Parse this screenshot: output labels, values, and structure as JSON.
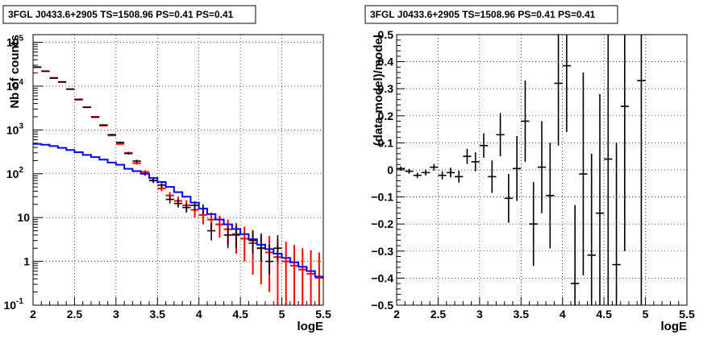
{
  "chart_data": [
    {
      "type": "scatter",
      "title": "3FGL J0433.6+2905 TS=1508.96 PS=0.41 PS=0.41",
      "xlabel": "logE",
      "ylabel": "Nb of counts",
      "xlim": [
        2,
        5.5
      ],
      "ylim": [
        0.1,
        150000
      ],
      "y_scale": "log",
      "grid": true,
      "x_ticks": [
        "2",
        "2.5",
        "3",
        "3.5",
        "4",
        "4.5",
        "5",
        "5.5"
      ],
      "y_ticks": [
        {
          "base": "10",
          "exp": "-1",
          "value": 0.1
        },
        {
          "base": "1",
          "exp": "",
          "value": 1
        },
        {
          "base": "10",
          "exp": "",
          "value": 10
        },
        {
          "base": "10",
          "exp": "2",
          "value": 100
        },
        {
          "base": "10",
          "exp": "3",
          "value": 1000
        },
        {
          "base": "10",
          "exp": "4",
          "value": 10000
        },
        {
          "base": "10",
          "exp": "5",
          "value": 100000
        }
      ],
      "series": [
        {
          "color": "#ff0000",
          "style": "errorbar-step",
          "points": [
            {
              "x": 2.05,
              "y": 27000,
              "lo": 26500,
              "hi": 27500
            },
            {
              "x": 2.15,
              "y": 22000,
              "lo": 21600,
              "hi": 22400
            },
            {
              "x": 2.25,
              "y": 15500,
              "lo": 15200,
              "hi": 15800
            },
            {
              "x": 2.35,
              "y": 12500,
              "lo": 12200,
              "hi": 12800
            },
            {
              "x": 2.45,
              "y": 8500,
              "lo": 8300,
              "hi": 8700
            },
            {
              "x": 2.55,
              "y": 5000,
              "lo": 4900,
              "hi": 5100
            },
            {
              "x": 2.65,
              "y": 3300,
              "lo": 3200,
              "hi": 3400
            },
            {
              "x": 2.75,
              "y": 2000,
              "lo": 1950,
              "hi": 2050
            },
            {
              "x": 2.85,
              "y": 1250,
              "lo": 1200,
              "hi": 1300
            },
            {
              "x": 2.95,
              "y": 750,
              "lo": 720,
              "hi": 780
            },
            {
              "x": 3.05,
              "y": 480,
              "lo": 455,
              "hi": 505
            },
            {
              "x": 3.15,
              "y": 300,
              "lo": 282,
              "hi": 318
            },
            {
              "x": 3.25,
              "y": 175,
              "lo": 162,
              "hi": 188
            },
            {
              "x": 3.35,
              "y": 110,
              "lo": 100,
              "hi": 120
            },
            {
              "x": 3.45,
              "y": 70,
              "lo": 62,
              "hi": 78
            },
            {
              "x": 3.55,
              "y": 46,
              "lo": 40,
              "hi": 53
            },
            {
              "x": 3.65,
              "y": 32,
              "lo": 26,
              "hi": 38
            },
            {
              "x": 3.75,
              "y": 24,
              "lo": 18,
              "hi": 30
            },
            {
              "x": 3.85,
              "y": 19,
              "lo": 14,
              "hi": 25
            },
            {
              "x": 3.95,
              "y": 15,
              "lo": 10,
              "hi": 20
            },
            {
              "x": 4.05,
              "y": 11.5,
              "lo": 7,
              "hi": 16
            },
            {
              "x": 4.15,
              "y": 9,
              "lo": 5,
              "hi": 13
            },
            {
              "x": 4.25,
              "y": 7,
              "lo": 3.5,
              "hi": 11
            },
            {
              "x": 4.35,
              "y": 5.4,
              "lo": 2.4,
              "hi": 9
            },
            {
              "x": 4.45,
              "y": 4.2,
              "lo": 1.5,
              "hi": 7.5
            },
            {
              "x": 4.55,
              "y": 3.3,
              "lo": 1.0,
              "hi": 6.2
            },
            {
              "x": 4.65,
              "y": 2.6,
              "lo": 0.5,
              "hi": 5.2
            },
            {
              "x": 4.75,
              "y": 2.0,
              "lo": 0.3,
              "hi": 4.4
            },
            {
              "x": 4.85,
              "y": 1.6,
              "lo": 0.2,
              "hi": 3.8
            },
            {
              "x": 4.95,
              "y": 1.25,
              "lo": 0.1,
              "hi": 3.2
            },
            {
              "x": 5.05,
              "y": 1.0,
              "lo": 0.1,
              "hi": 2.8
            },
            {
              "x": 5.15,
              "y": 0.8,
              "lo": 0.1,
              "hi": 2.4
            },
            {
              "x": 5.25,
              "y": 0.65,
              "lo": 0.1,
              "hi": 2.0
            },
            {
              "x": 5.35,
              "y": 0.52,
              "lo": 0.1,
              "hi": 1.8
            },
            {
              "x": 5.45,
              "y": 0.42,
              "lo": 0.1,
              "hi": 1.6
            }
          ]
        },
        {
          "color": "#000000",
          "style": "errorbar",
          "points": [
            {
              "x": 2.05,
              "y": 27300,
              "lo": 27000,
              "hi": 27600
            },
            {
              "x": 2.15,
              "y": 21900,
              "lo": 21600,
              "hi": 22200
            },
            {
              "x": 2.25,
              "y": 15200,
              "lo": 15000,
              "hi": 15500
            },
            {
              "x": 2.35,
              "y": 12400,
              "lo": 12100,
              "hi": 12700
            },
            {
              "x": 2.45,
              "y": 8600,
              "lo": 8400,
              "hi": 8800
            },
            {
              "x": 2.55,
              "y": 4900,
              "lo": 4800,
              "hi": 5000
            },
            {
              "x": 2.65,
              "y": 3300,
              "lo": 3200,
              "hi": 3400
            },
            {
              "x": 2.75,
              "y": 1950,
              "lo": 1900,
              "hi": 2000
            },
            {
              "x": 2.85,
              "y": 1300,
              "lo": 1250,
              "hi": 1350
            },
            {
              "x": 2.95,
              "y": 780,
              "lo": 750,
              "hi": 810
            },
            {
              "x": 3.05,
              "y": 520,
              "lo": 495,
              "hi": 545
            },
            {
              "x": 3.15,
              "y": 290,
              "lo": 273,
              "hi": 307
            },
            {
              "x": 3.25,
              "y": 195,
              "lo": 181,
              "hi": 209
            },
            {
              "x": 3.35,
              "y": 100,
              "lo": 90,
              "hi": 110
            },
            {
              "x": 3.45,
              "y": 70,
              "lo": 62,
              "hi": 78
            },
            {
              "x": 3.55,
              "y": 55,
              "lo": 48,
              "hi": 62
            },
            {
              "x": 3.65,
              "y": 26,
              "lo": 21,
              "hi": 31
            },
            {
              "x": 3.75,
              "y": 21,
              "lo": 17,
              "hi": 26
            },
            {
              "x": 3.85,
              "y": 17,
              "lo": 13,
              "hi": 21
            },
            {
              "x": 3.95,
              "y": 19,
              "lo": 14.5,
              "hi": 23.5
            },
            {
              "x": 4.05,
              "y": 16,
              "lo": 12,
              "hi": 20
            },
            {
              "x": 4.15,
              "y": 5,
              "lo": 3,
              "hi": 7.5
            },
            {
              "x": 4.35,
              "y": 4,
              "lo": 2,
              "hi": 6.5
            },
            {
              "x": 4.45,
              "y": 4,
              "lo": 2,
              "hi": 6.5
            },
            {
              "x": 4.65,
              "y": 3,
              "lo": 1.5,
              "hi": 5
            },
            {
              "x": 4.75,
              "y": 2,
              "lo": 1,
              "hi": 4
            },
            {
              "x": 4.85,
              "y": 1,
              "lo": 0.5,
              "hi": 2.5
            },
            {
              "x": 4.95,
              "y": 2,
              "lo": 1,
              "hi": 4
            }
          ]
        },
        {
          "color": "#0000ff",
          "style": "step",
          "points": [
            {
              "x": 2.0,
              "y": 480
            },
            {
              "x": 2.1,
              "y": 460
            },
            {
              "x": 2.2,
              "y": 430
            },
            {
              "x": 2.3,
              "y": 390
            },
            {
              "x": 2.4,
              "y": 350
            },
            {
              "x": 2.5,
              "y": 310
            },
            {
              "x": 2.6,
              "y": 270
            },
            {
              "x": 2.7,
              "y": 240
            },
            {
              "x": 2.8,
              "y": 210
            },
            {
              "x": 2.9,
              "y": 180
            },
            {
              "x": 3.0,
              "y": 160
            },
            {
              "x": 3.1,
              "y": 130
            },
            {
              "x": 3.2,
              "y": 115
            },
            {
              "x": 3.3,
              "y": 100
            },
            {
              "x": 3.4,
              "y": 80
            },
            {
              "x": 3.5,
              "y": 65
            },
            {
              "x": 3.6,
              "y": 50
            },
            {
              "x": 3.7,
              "y": 38
            },
            {
              "x": 3.8,
              "y": 30
            },
            {
              "x": 3.9,
              "y": 22
            },
            {
              "x": 4.0,
              "y": 16
            },
            {
              "x": 4.1,
              "y": 12
            },
            {
              "x": 4.2,
              "y": 9
            },
            {
              "x": 4.3,
              "y": 7
            },
            {
              "x": 4.4,
              "y": 5.5
            },
            {
              "x": 4.5,
              "y": 4.2
            },
            {
              "x": 4.6,
              "y": 3.2
            },
            {
              "x": 4.7,
              "y": 2.4
            },
            {
              "x": 4.8,
              "y": 1.9
            },
            {
              "x": 4.9,
              "y": 1.5
            },
            {
              "x": 5.0,
              "y": 1.2
            },
            {
              "x": 5.1,
              "y": 0.95
            },
            {
              "x": 5.2,
              "y": 0.75
            },
            {
              "x": 5.3,
              "y": 0.6
            },
            {
              "x": 5.4,
              "y": 0.45
            },
            {
              "x": 5.5,
              "y": 0.45
            }
          ]
        }
      ]
    },
    {
      "type": "scatter",
      "title": "3FGL J0433.6+2905 TS=1508.96 PS=0.41 PS=0.41",
      "xlabel": "logE",
      "ylabel": "(data-model)/model",
      "xlim": [
        2,
        5.5
      ],
      "ylim": [
        -0.5,
        0.5
      ],
      "grid": true,
      "x_ticks": [
        "2",
        "2.5",
        "3",
        "3.5",
        "4",
        "4.5",
        "5",
        "5.5"
      ],
      "y_ticks": [
        {
          "label": "0.5",
          "value": 0.5
        },
        {
          "label": "0.4",
          "value": 0.4
        },
        {
          "label": "0.3",
          "value": 0.3
        },
        {
          "label": "0.2",
          "value": 0.2
        },
        {
          "label": "0.1",
          "value": 0.1
        },
        {
          "label": "0",
          "value": 0
        },
        {
          "label": "−0.1",
          "value": -0.1
        },
        {
          "label": "−0.2",
          "value": -0.2
        },
        {
          "label": "−0.3",
          "value": -0.3
        },
        {
          "label": "−0.4",
          "value": -0.4
        },
        {
          "label": "−0.5",
          "value": -0.5
        }
      ],
      "series": [
        {
          "color": "#000000",
          "style": "errorbar",
          "points": [
            {
              "x": 2.05,
              "y": 0.005,
              "lo": -0.003,
              "hi": 0.013
            },
            {
              "x": 2.15,
              "y": -0.005,
              "lo": -0.014,
              "hi": 0.004
            },
            {
              "x": 2.25,
              "y": -0.02,
              "lo": -0.03,
              "hi": -0.01
            },
            {
              "x": 2.35,
              "y": -0.01,
              "lo": -0.021,
              "hi": 0.001
            },
            {
              "x": 2.45,
              "y": 0.01,
              "lo": -0.002,
              "hi": 0.022
            },
            {
              "x": 2.55,
              "y": -0.02,
              "lo": -0.035,
              "hi": -0.005
            },
            {
              "x": 2.65,
              "y": -0.01,
              "lo": -0.028,
              "hi": 0.008
            },
            {
              "x": 2.75,
              "y": -0.025,
              "lo": -0.047,
              "hi": -0.003
            },
            {
              "x": 2.85,
              "y": 0.05,
              "lo": 0.022,
              "hi": 0.078
            },
            {
              "x": 2.95,
              "y": 0.03,
              "lo": -0.005,
              "hi": 0.065
            },
            {
              "x": 3.05,
              "y": 0.09,
              "lo": 0.045,
              "hi": 0.135
            },
            {
              "x": 3.15,
              "y": -0.025,
              "lo": -0.085,
              "hi": 0.035
            },
            {
              "x": 3.25,
              "y": 0.13,
              "lo": 0.05,
              "hi": 0.21
            },
            {
              "x": 3.35,
              "y": -0.105,
              "lo": -0.195,
              "hi": -0.015
            },
            {
              "x": 3.45,
              "y": 0.005,
              "lo": -0.115,
              "hi": 0.125
            },
            {
              "x": 3.55,
              "y": 0.18,
              "lo": 0.03,
              "hi": 0.33
            },
            {
              "x": 3.65,
              "y": -0.2,
              "lo": -0.355,
              "hi": -0.045
            },
            {
              "x": 3.75,
              "y": 0.01,
              "lo": -0.16,
              "hi": 0.18
            },
            {
              "x": 3.85,
              "y": -0.095,
              "lo": -0.29,
              "hi": 0.1
            },
            {
              "x": 3.95,
              "y": 0.32,
              "lo": 0.09,
              "hi": 0.55
            },
            {
              "x": 4.05,
              "y": 0.385,
              "lo": 0.14,
              "hi": 0.63
            },
            {
              "x": 4.15,
              "y": -0.42,
              "lo": -0.7,
              "hi": -0.13
            },
            {
              "x": 4.25,
              "y": -0.015,
              "lo": -0.39,
              "hi": 0.36
            },
            {
              "x": 4.35,
              "y": -0.315,
              "lo": -0.7,
              "hi": 0.06
            },
            {
              "x": 4.45,
              "y": -0.16,
              "lo": -0.6,
              "hi": 0.28
            },
            {
              "x": 4.55,
              "y": 0.04,
              "lo": -0.5,
              "hi": 0.58
            },
            {
              "x": 4.65,
              "y": -0.35,
              "lo": -0.8,
              "hi": 0.1
            },
            {
              "x": 4.75,
              "y": 0.235,
              "lo": -0.3,
              "hi": 0.77
            },
            {
              "x": 4.95,
              "y": 0.33,
              "lo": -0.6,
              "hi": 1.2
            }
          ]
        }
      ]
    }
  ]
}
